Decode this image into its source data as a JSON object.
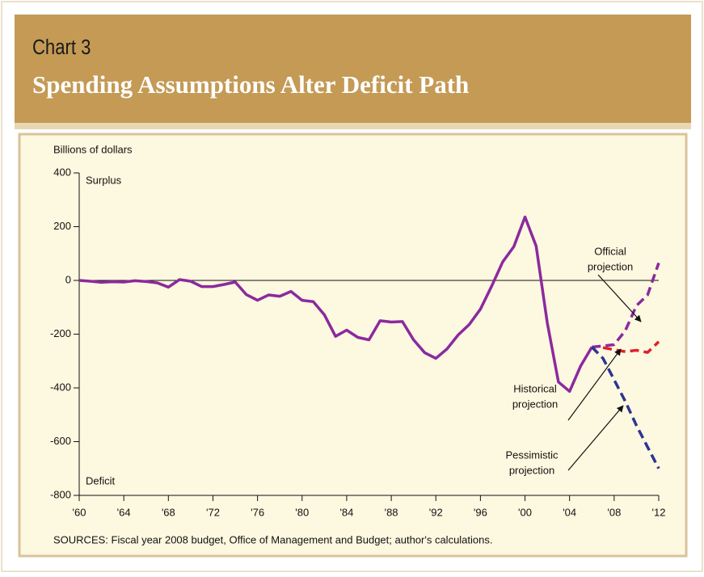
{
  "chart_data": {
    "type": "line",
    "label": "Chart 3",
    "title": "Spending Assumptions Alter Deficit Path",
    "y_label": "Billions of dollars",
    "source": "SOURCES: Fiscal year 2008 budget, Office of Management and Budget; author's calculations.",
    "region_labels": [
      "Surplus",
      "Deficit"
    ],
    "series": [
      {
        "color": "#8b2a9e",
        "dashed": false,
        "x": [
          1960,
          1961,
          1962,
          1963,
          1964,
          1965,
          1966,
          1967,
          1968,
          1969,
          1970,
          1971,
          1972,
          1973,
          1974,
          1975,
          1976,
          1977,
          1978,
          1979,
          1980,
          1981,
          1982,
          1983,
          1984,
          1985,
          1986,
          1987,
          1988,
          1989,
          1990,
          1991,
          1992,
          1993,
          1994,
          1995,
          1996,
          1997,
          1998,
          1999,
          2000,
          2001,
          2002,
          2003,
          2004,
          2005,
          2006
        ],
        "values": [
          0,
          -3,
          -7,
          -5,
          -6,
          -1,
          -4,
          -9,
          -25,
          3,
          -3,
          -23,
          -23,
          -15,
          -6,
          -53,
          -74,
          -54,
          -59,
          -41,
          -74,
          -79,
          -128,
          -208,
          -185,
          -212,
          -221,
          -150,
          -155,
          -153,
          -221,
          -269,
          -290,
          -255,
          -203,
          -164,
          -107,
          -22,
          69,
          126,
          236,
          128,
          -158,
          -378,
          -413,
          -318,
          -248
        ]
      },
      {
        "color": "#8b2a9e",
        "dashed": true,
        "x": [
          2006,
          2007,
          2008,
          2009,
          2010,
          2011,
          2012
        ],
        "values": [
          -248,
          -244,
          -239,
          -187,
          -94,
          -54,
          65
        ]
      },
      {
        "color": "#e0202a",
        "dashed": true,
        "x": [
          2007,
          2008,
          2009,
          2010,
          2011,
          2012
        ],
        "values": [
          -250,
          -258,
          -265,
          -260,
          -268,
          -228
        ]
      },
      {
        "color": "#2b3592",
        "dashed": true,
        "x": [
          2006,
          2007,
          2008,
          2009,
          2010,
          2011,
          2012
        ],
        "values": [
          -248,
          -290,
          -370,
          -450,
          -540,
          -620,
          -700
        ]
      }
    ],
    "annotations": [
      {
        "lines": [
          "Official",
          "projection"
        ]
      },
      {
        "lines": [
          "Historical",
          "projection"
        ]
      },
      {
        "lines": [
          "Pessimistic",
          "projection"
        ]
      }
    ],
    "xlim": [
      1960,
      2012
    ],
    "xticks": [
      {
        "value": 1960,
        "label": "'60"
      },
      {
        "value": 1964,
        "label": "'64"
      },
      {
        "value": 1968,
        "label": "'68"
      },
      {
        "value": 1972,
        "label": "'72"
      },
      {
        "value": 1976,
        "label": "'76"
      },
      {
        "value": 1980,
        "label": "'80"
      },
      {
        "value": 1984,
        "label": "'84"
      },
      {
        "value": 1988,
        "label": "'88"
      },
      {
        "value": 1992,
        "label": "'92"
      },
      {
        "value": 1996,
        "label": "'96"
      },
      {
        "value": 2000,
        "label": "'00"
      },
      {
        "value": 2004,
        "label": "'04"
      },
      {
        "value": 2008,
        "label": "'08"
      },
      {
        "value": 2012,
        "label": "'12"
      }
    ],
    "ylim": [
      -800,
      400
    ],
    "yticks": [
      400,
      200,
      0,
      -200,
      -400,
      -600,
      -800
    ]
  }
}
